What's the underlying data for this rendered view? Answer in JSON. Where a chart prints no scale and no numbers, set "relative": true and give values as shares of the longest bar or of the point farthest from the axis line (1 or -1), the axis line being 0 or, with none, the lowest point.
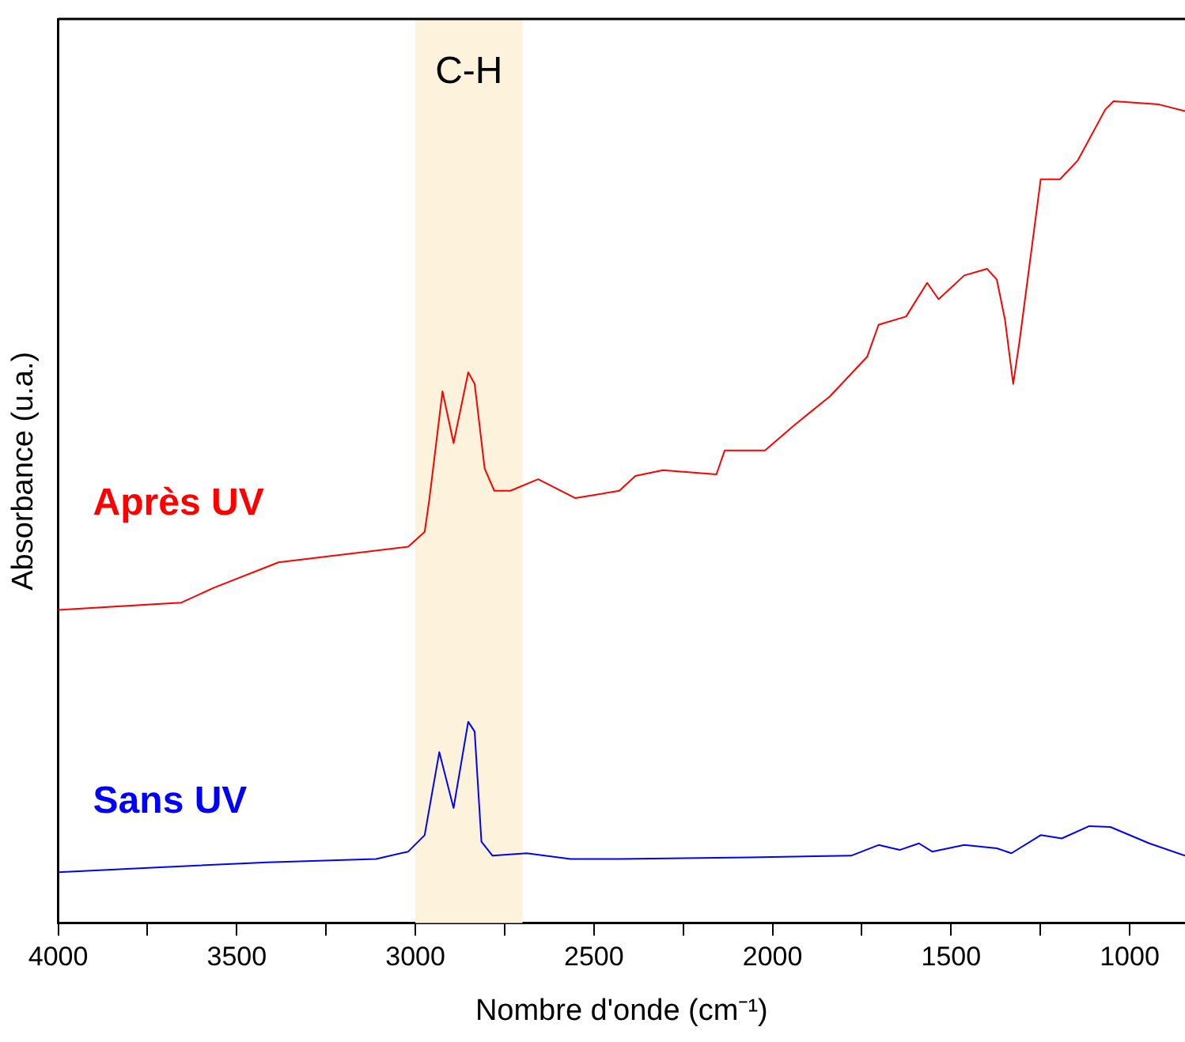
{
  "chart_data": {
    "type": "line",
    "relative": true,
    "xlabel": "Nombre d'onde (cm⁻¹)",
    "ylabel": "Absorbance (u.a.)",
    "xlim": [
      4000,
      845
    ],
    "xticks": [
      4000,
      {
        "value": 3750,
        "label": null
      },
      3500,
      {
        "value": 3250,
        "label": null
      },
      3000,
      {
        "value": 2750,
        "label": null
      },
      2500,
      {
        "value": 2250,
        "label": null
      },
      2000,
      {
        "value": 1750,
        "label": null
      },
      1500,
      {
        "value": 1250,
        "label": null
      },
      1000
    ],
    "grid": false,
    "legend": false,
    "marker": "none",
    "line_style": "solid",
    "bands": [
      {
        "axis": "x",
        "from": 3000,
        "to": 2700,
        "label": "C-H",
        "color": "#fdf2dc"
      }
    ],
    "series": [
      {
        "name": "Après UV",
        "color": "#ff0000",
        "x": [
          4000,
          3655,
          3564,
          3383,
          3020,
          2974,
          2961,
          2924,
          2893,
          2852,
          2834,
          2806,
          2779,
          2734,
          2656,
          2552,
          2429,
          2384,
          2307,
          2157,
          2134,
          2021,
          1944,
          1839,
          1735,
          1703,
          1626,
          1567,
          1535,
          1463,
          1399,
          1372,
          1349,
          1326,
          1308,
          1249,
          1195,
          1145,
          1068,
          1045,
          918,
          845
        ],
        "values": [
          0.381,
          0.39,
          0.408,
          0.439,
          0.458,
          0.476,
          0.515,
          0.647,
          0.584,
          0.67,
          0.656,
          0.553,
          0.526,
          0.526,
          0.54,
          0.517,
          0.526,
          0.544,
          0.551,
          0.546,
          0.575,
          0.575,
          0.604,
          0.641,
          0.689,
          0.728,
          0.738,
          0.779,
          0.759,
          0.788,
          0.796,
          0.783,
          0.734,
          0.656,
          0.709,
          0.905,
          0.905,
          0.928,
          0.99,
          1,
          0.996,
          0.988
        ]
      },
      {
        "name": "Sans UV",
        "color": "#0000ff",
        "x": [
          4000,
          3714,
          3414,
          3110,
          3020,
          2974,
          2933,
          2893,
          2852,
          2834,
          2815,
          2784,
          2688,
          2566,
          2429,
          2066,
          1780,
          1703,
          1644,
          1590,
          1553,
          1463,
          1372,
          1331,
          1249,
          1190,
          1113,
          1054,
          945,
          845
        ],
        "values": [
          0.062,
          0.068,
          0.074,
          0.078,
          0.087,
          0.107,
          0.208,
          0.14,
          0.245,
          0.233,
          0.099,
          0.082,
          0.085,
          0.078,
          0.078,
          0.08,
          0.082,
          0.095,
          0.089,
          0.097,
          0.087,
          0.095,
          0.091,
          0.085,
          0.107,
          0.103,
          0.118,
          0.117,
          0.097,
          0.082
        ]
      }
    ]
  }
}
